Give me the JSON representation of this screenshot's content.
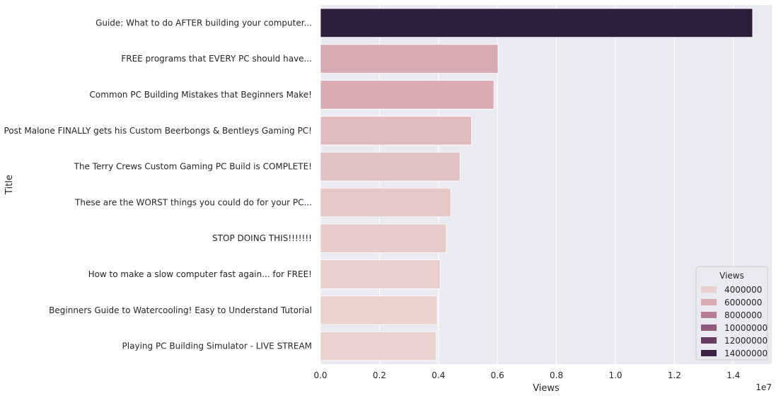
{
  "chart_data": {
    "type": "bar",
    "orientation": "horizontal",
    "xlabel": "Views",
    "ylabel": "Title",
    "x_tick_labels": [
      "0.0",
      "0.2",
      "0.4",
      "0.6",
      "0.8",
      "1.0",
      "1.2",
      "1.4"
    ],
    "x_ticks": [
      0,
      2000000,
      4000000,
      6000000,
      8000000,
      10000000,
      12000000,
      14000000
    ],
    "x_offset_label": "1e7",
    "xlim": [
      0,
      15300000
    ],
    "grid": true,
    "categories": [
      "Guide: What to do AFTER building your computer...",
      "FREE programs that EVERY PC should have...",
      "Common PC Building Mistakes that Beginners Make!",
      "Post Malone FINALLY gets his Custom Beerbongs & Bentleys Gaming PC!",
      "The Terry Crews Custom Gaming PC Build is COMPLETE!",
      "These are the WORST things you could do for your PC...",
      "STOP DOING THIS!!!!!!!",
      "How to make a slow computer fast again... for FREE!",
      "Beginners Guide to Watercooling! Easy to Understand Tutorial",
      "Playing PC Building Simulator - LIVE STREAM"
    ],
    "values": [
      14650000,
      6020000,
      5880000,
      5120000,
      4730000,
      4420000,
      4270000,
      4060000,
      3960000,
      3920000
    ],
    "hue": "Views",
    "colormap": [
      "#ead3ce",
      "#d9a8b1",
      "#b57a95",
      "#8b5478",
      "#5e3559",
      "#2e1c3b"
    ],
    "hue_range": [
      3900000,
      14650000
    ],
    "legend": {
      "title": "Views",
      "placement": "lower-right",
      "entries": [
        "4000000",
        "6000000",
        "8000000",
        "10000000",
        "12000000",
        "14000000"
      ],
      "entry_values": [
        4000000,
        6000000,
        8000000,
        10000000,
        12000000,
        14000000
      ]
    },
    "background_color": "#eaeaf2",
    "grid_color": "#ffffff"
  }
}
